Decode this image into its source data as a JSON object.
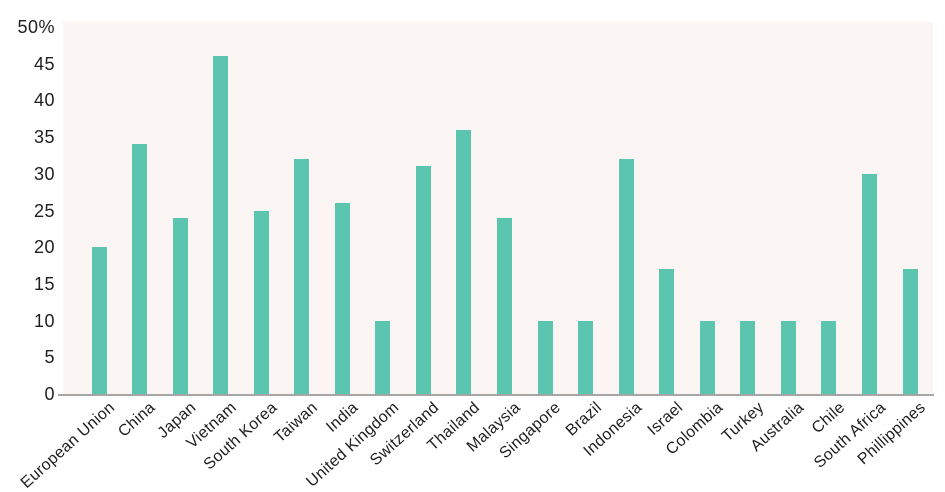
{
  "chart_data": {
    "type": "bar",
    "categories": [
      "European Union",
      "China",
      "Japan",
      "Vietnam",
      "South Korea",
      "Taiwan",
      "India",
      "United Kingdom",
      "Switzerland",
      "Thailand",
      "Malaysia",
      "Singapore",
      "Brazil",
      "Indonesia",
      "Israel",
      "Colombia",
      "Turkey",
      "Australia",
      "Chile",
      "South Africa",
      "Phillippines"
    ],
    "values": [
      20,
      34,
      24,
      46,
      25,
      32,
      26,
      10,
      31,
      36,
      24,
      10,
      10,
      32,
      17,
      10,
      10,
      10,
      10,
      30,
      17
    ],
    "yticks": [
      {
        "value": 0,
        "label": "0"
      },
      {
        "value": 5,
        "label": "5"
      },
      {
        "value": 10,
        "label": "10"
      },
      {
        "value": 15,
        "label": "15"
      },
      {
        "value": 20,
        "label": "20"
      },
      {
        "value": 25,
        "label": "25"
      },
      {
        "value": 30,
        "label": "30"
      },
      {
        "value": 35,
        "label": "35"
      },
      {
        "value": 40,
        "label": "40"
      },
      {
        "value": 45,
        "label": "45"
      },
      {
        "value": 50,
        "label": "50%"
      }
    ],
    "ylim": [
      0,
      50
    ],
    "grid": false,
    "legend": "none",
    "colors": {
      "bar": "#5cc5af",
      "plot_background": "#fbf6f3",
      "axis_line": "#a6a6a6",
      "text": "#1f1f1f",
      "page_background": "#ffffff"
    }
  }
}
